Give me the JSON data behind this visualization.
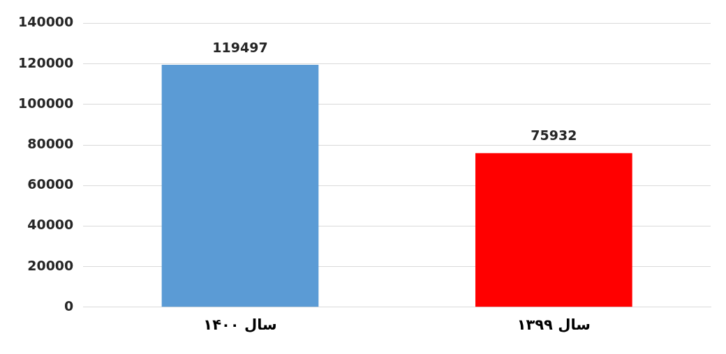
{
  "chart_data": {
    "type": "bar",
    "categories": [
      "سال ۱۴۰۰",
      "سال ۱۳۹۹"
    ],
    "values": [
      119497,
      75932
    ],
    "colors": [
      "#5b9bd5",
      "#ff0000"
    ],
    "ylim": [
      0,
      140000
    ],
    "yticks": [
      0,
      20000,
      40000,
      60000,
      80000,
      100000,
      120000,
      140000
    ],
    "grid": "y",
    "data_labels": true
  }
}
